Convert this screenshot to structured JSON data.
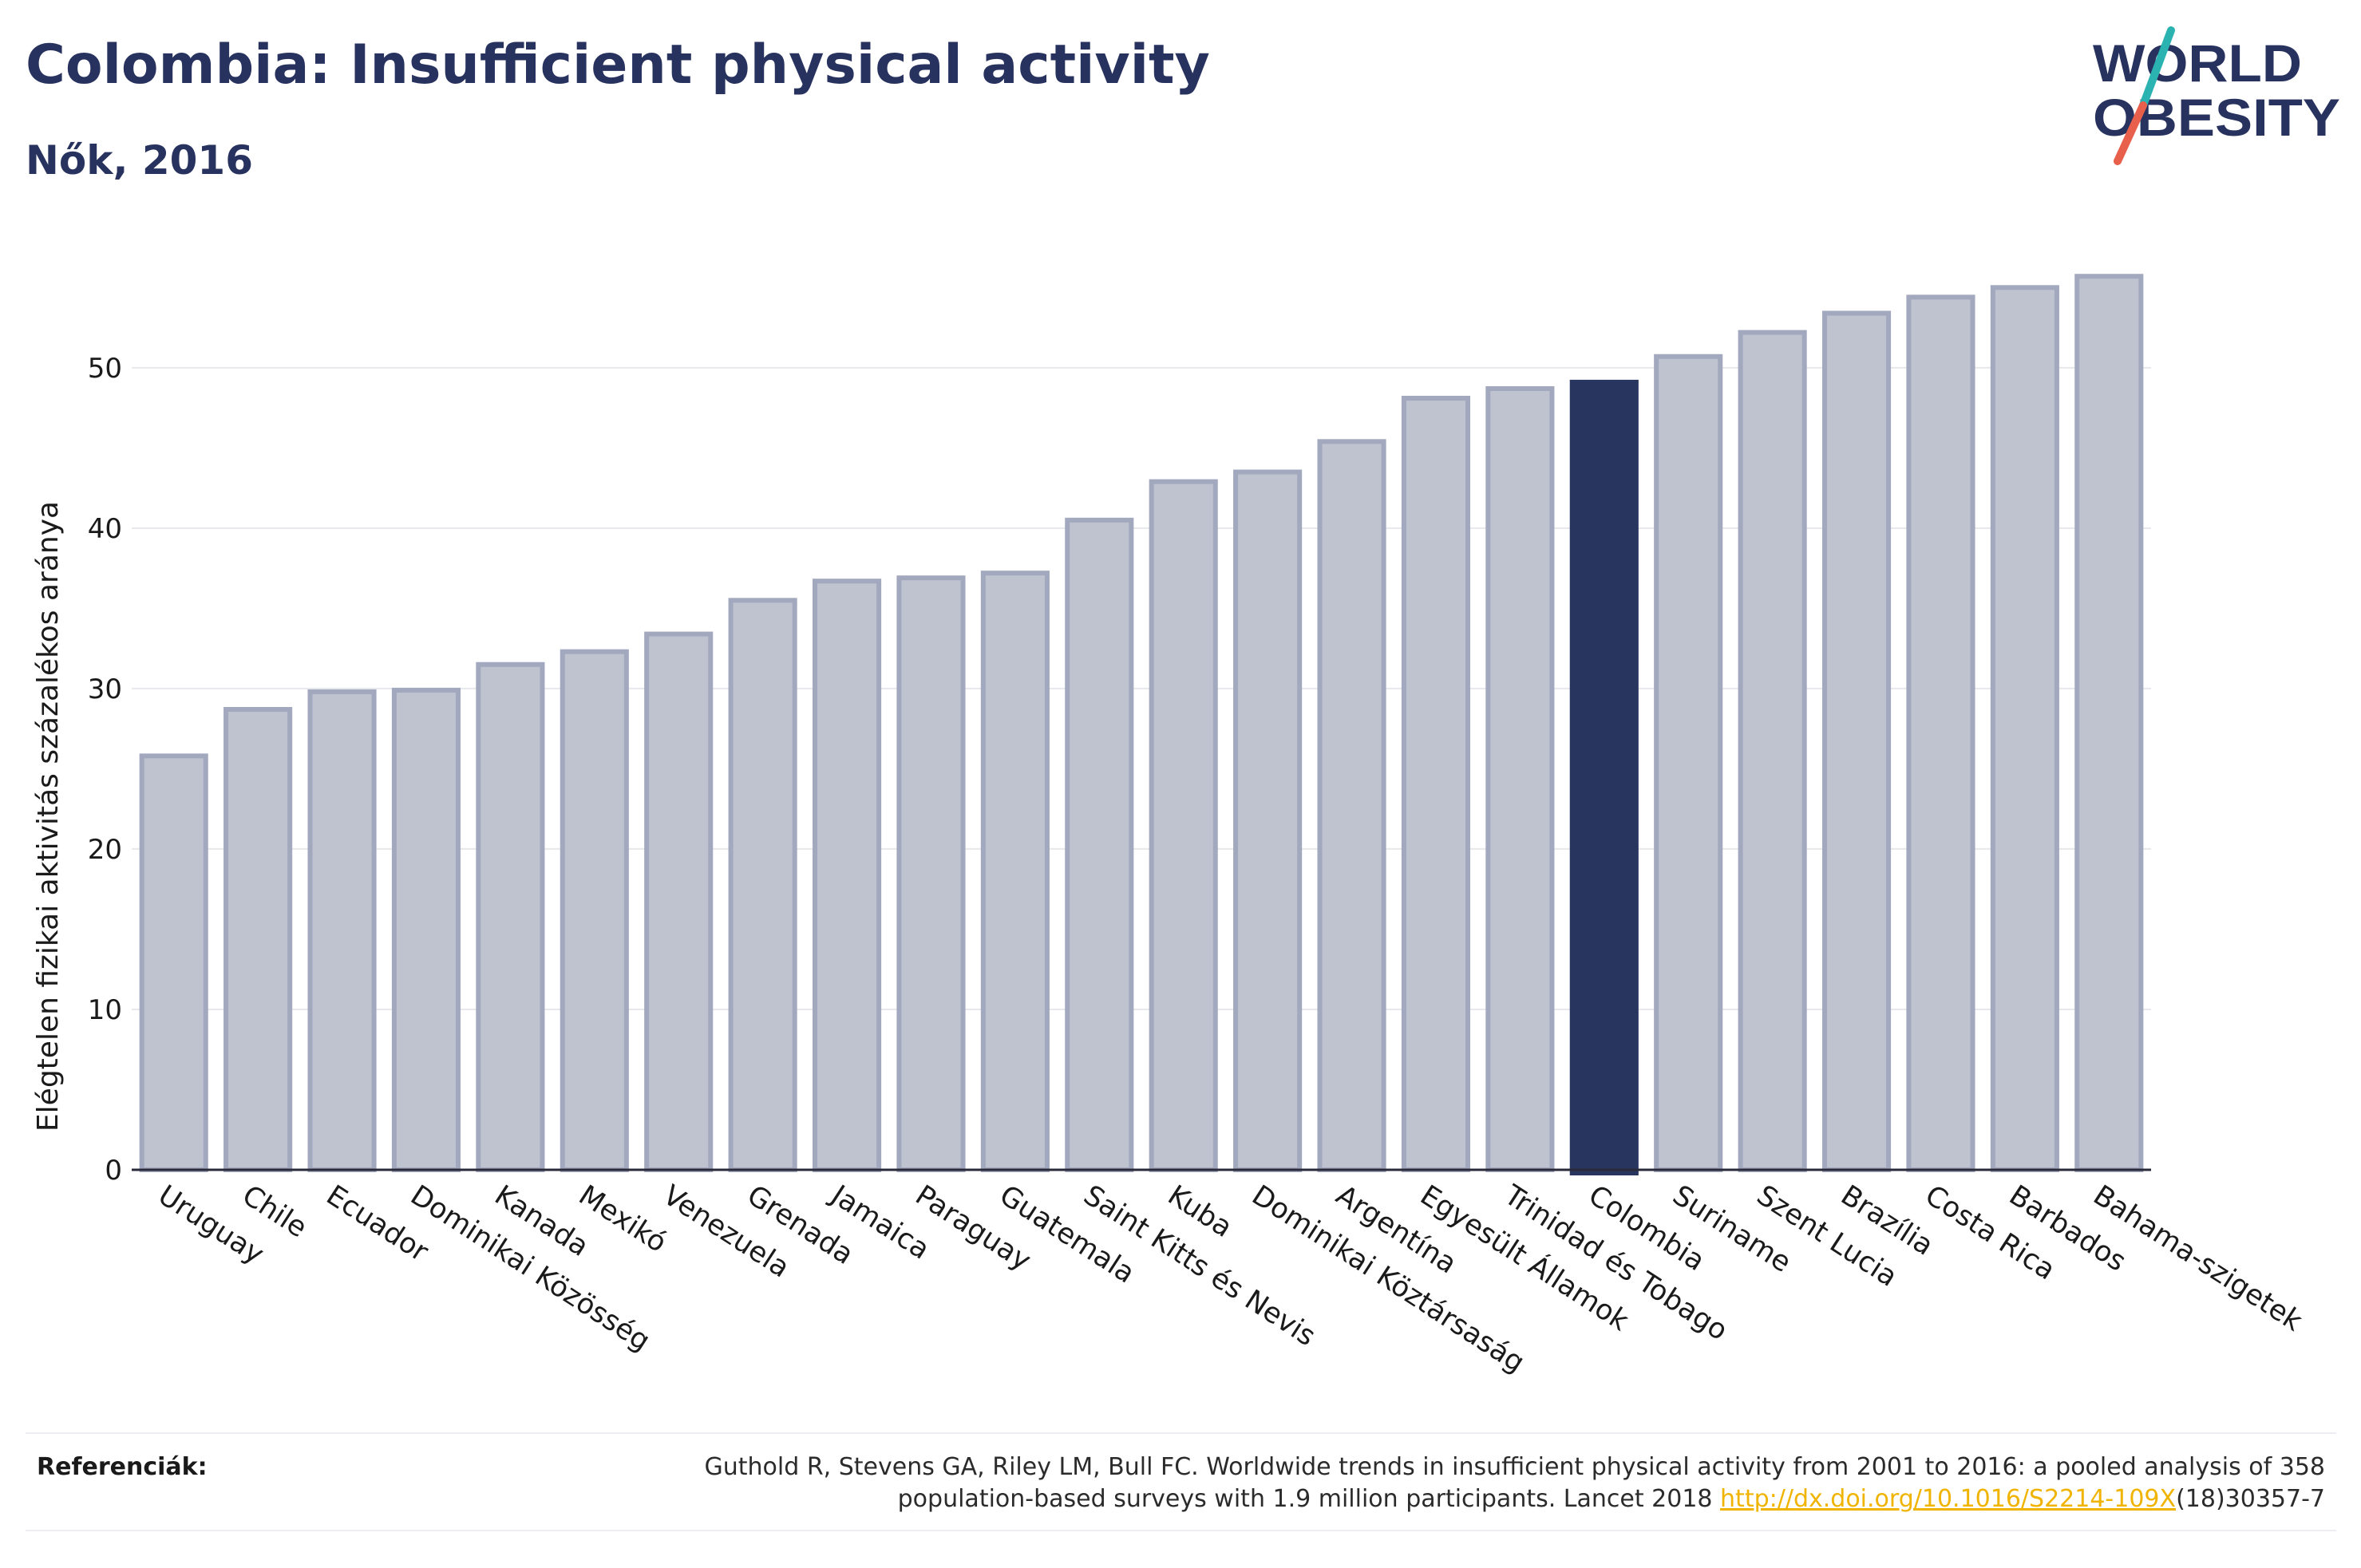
{
  "header": {
    "title": "Colombia: Insufficient physical activity",
    "subtitle": "Nők, 2016"
  },
  "logo": {
    "line1": "WORLD",
    "line2": "OBESITY",
    "slash_colors": [
      "#2bb3b1",
      "#e8604c"
    ]
  },
  "colors": {
    "bar_default": "#bfc3d0",
    "bar_default_stroke": "#a2a8bd",
    "bar_highlight": "#28355f",
    "grid": "#e6e8ec",
    "baseline": "#2a2a3a"
  },
  "chart_data": {
    "type": "bar",
    "ylabel": "Elégtelen fizikai aktivitás százalékos aránya",
    "xlabel": "",
    "ylim": [
      0,
      58
    ],
    "yticks": [
      0,
      10,
      20,
      30,
      40,
      50
    ],
    "grid": true,
    "highlight": "Colombia",
    "categories": [
      "Uruguay",
      "Chile",
      "Ecuador",
      "Dominikai Közösség",
      "Kanada",
      "Mexikó",
      "Venezuela",
      "Grenada",
      "Jamaica",
      "Paraguay",
      "Guatemala",
      "Saint Kitts és Nevis",
      "Kuba",
      "Dominikai Köztársaság",
      "Argentína",
      "Egyesült Államok",
      "Trinidad és Tobago",
      "Colombia",
      "Suriname",
      "Szent Lucia",
      "Brazília",
      "Costa Rica",
      "Barbados",
      "Bahama-szigetek"
    ],
    "values": [
      25.8,
      28.7,
      29.8,
      29.9,
      31.5,
      32.3,
      33.4,
      35.5,
      36.7,
      36.9,
      37.2,
      40.5,
      42.9,
      43.5,
      45.4,
      48.1,
      48.7,
      49.1,
      50.7,
      52.2,
      53.4,
      54.4,
      55.0,
      55.7
    ]
  },
  "references": {
    "label": "Referenciák:",
    "line1": "Guthold R, Stevens GA, Riley LM, Bull FC. Worldwide trends in insufficient physical activity from 2001 to 2016: a pooled analysis of 358",
    "line2_prefix": "population-based surveys with 1.9 million participants. Lancet 2018 ",
    "link": "http://dx.doi.org/10.1016/S2214-109X",
    "line2_suffix": "(18)30357-7"
  }
}
